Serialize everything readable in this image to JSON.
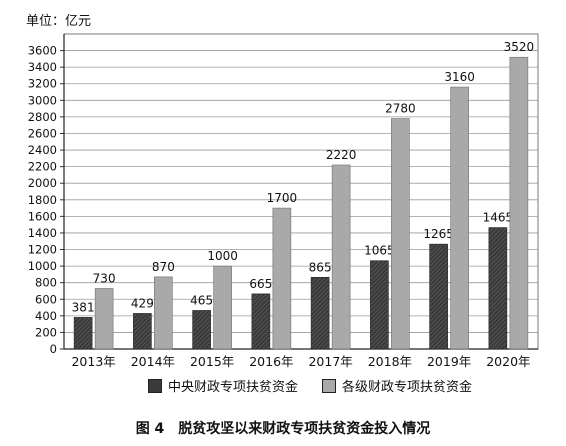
{
  "unit_label": "单位：亿元",
  "caption": {
    "figure_no": "图 4",
    "title": "脱贫攻坚以来财政专项扶贫资金投入情况"
  },
  "chart_data": {
    "type": "bar",
    "title": "脱贫攻坚以来财政专项扶贫资金投入情况",
    "ylabel": "单位：亿元",
    "xlabel": "",
    "categories": [
      "2013年",
      "2014年",
      "2015年",
      "2016年",
      "2017年",
      "2018年",
      "2019年",
      "2020年"
    ],
    "series": [
      {
        "name": "中央财政专项扶贫资金",
        "values": [
          381,
          429,
          465,
          665,
          865,
          1065,
          1265,
          1465
        ],
        "color": "#3a3a3a",
        "pattern": "hatched"
      },
      {
        "name": "各级财政专项扶贫资金",
        "values": [
          730,
          870,
          1000,
          1700,
          2220,
          2780,
          3160,
          3520
        ],
        "color": "#a9a9a9"
      }
    ],
    "ylim": [
      0,
      3800
    ],
    "yticks": [
      0,
      200,
      400,
      600,
      800,
      1000,
      1200,
      1400,
      1600,
      1800,
      2000,
      2200,
      2400,
      2600,
      2800,
      3000,
      3200,
      3400,
      3600
    ],
    "grid": true,
    "legend": "bottom"
  }
}
